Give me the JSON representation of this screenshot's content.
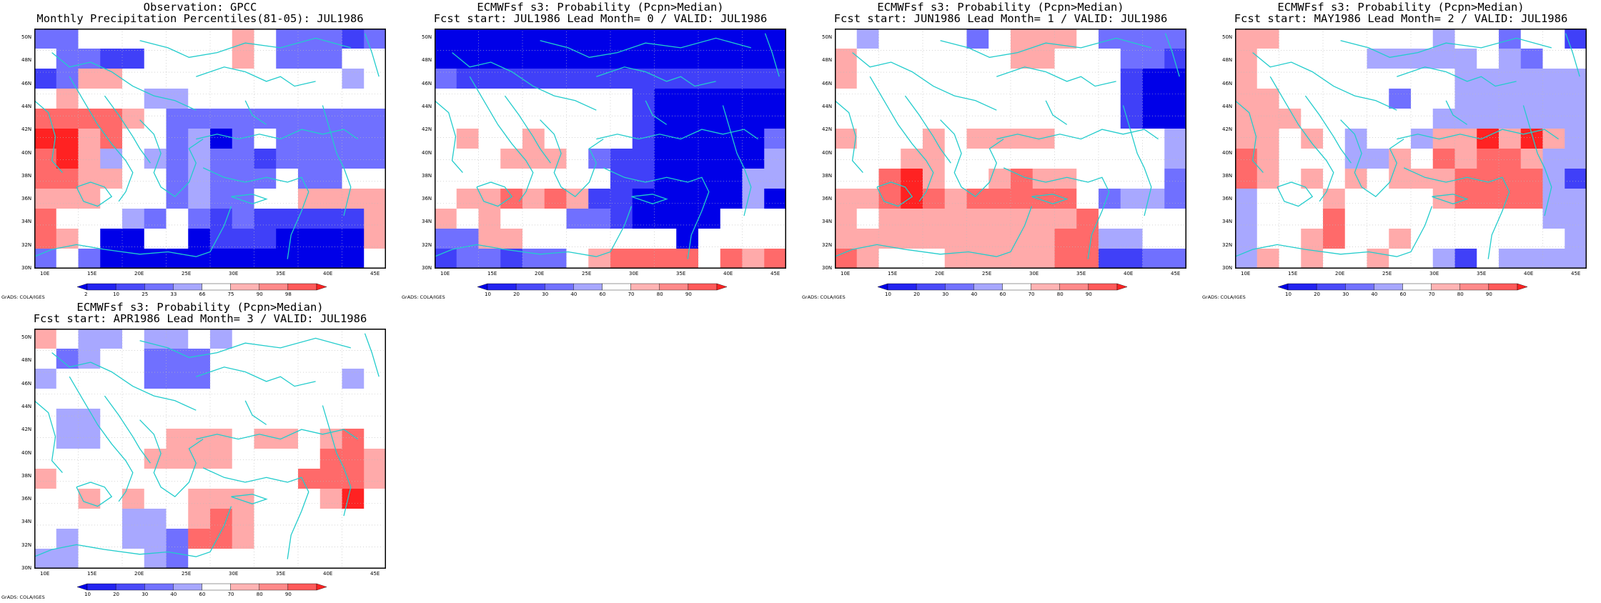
{
  "panels": [
    {
      "title_line1": "Observation: GPCC",
      "title_line2": "Monthly Precipitation Percentiles(81-05): JUL1986",
      "colorbar_labels": [
        "2",
        "10",
        "25",
        "33",
        "66",
        "75",
        "90",
        "98"
      ],
      "grid": [
        [
          "b1",
          "b1",
          "w",
          "w",
          "w",
          "w",
          "w",
          "w",
          "w",
          "r1",
          "w",
          "b1",
          "b1",
          "b1",
          "b2",
          "b1"
        ],
        [
          "w",
          "b1",
          "b1",
          "b2",
          "b2",
          "w",
          "w",
          "w",
          "w",
          "r1",
          "w",
          "b1",
          "b1",
          "b1",
          "w",
          "w"
        ],
        [
          "b2",
          "b1",
          "r1",
          "r1",
          "w",
          "w",
          "w",
          "w",
          "w",
          "w",
          "w",
          "w",
          "w",
          "w",
          "b0",
          "w"
        ],
        [
          "w",
          "r1",
          "w",
          "w",
          "w",
          "b0",
          "b0",
          "w",
          "w",
          "w",
          "w",
          "w",
          "w",
          "w",
          "w",
          "w"
        ],
        [
          "r2",
          "r2",
          "r2",
          "r2",
          "r1",
          "w",
          "b1",
          "b1",
          "b1",
          "b1",
          "b1",
          "b1",
          "b1",
          "b1",
          "b1",
          "b1"
        ],
        [
          "r3",
          "r3",
          "r1",
          "r2",
          "w",
          "w",
          "b1",
          "b0",
          "b3",
          "b1",
          "w",
          "b1",
          "b1",
          "b1",
          "b1",
          "b1"
        ],
        [
          "r2",
          "r3",
          "r1",
          "b0",
          "w",
          "b0",
          "b1",
          "b0",
          "b1",
          "b1",
          "b2",
          "b1",
          "b1",
          "b1",
          "b1",
          "b1"
        ],
        [
          "r2",
          "r2",
          "r1",
          "r1",
          "w",
          "w",
          "b1",
          "b0",
          "b1",
          "b1",
          "b1",
          "w",
          "b1",
          "b1",
          "w",
          "w"
        ],
        [
          "r1",
          "r1",
          "r1",
          "w",
          "w",
          "w",
          "b1",
          "b0",
          "b1",
          "b1",
          "w",
          "w",
          "r1",
          "r1",
          "r1",
          "r1"
        ],
        [
          "r2",
          "w",
          "w",
          "w",
          "b0",
          "b1",
          "w",
          "b1",
          "b2",
          "b1",
          "b2",
          "b2",
          "b2",
          "b2",
          "b2",
          "r1"
        ],
        [
          "r2",
          "r1",
          "w",
          "b3",
          "b3",
          "w",
          "w",
          "b3",
          "b2",
          "b2",
          "b2",
          "b3",
          "b3",
          "b3",
          "b3",
          "r1"
        ],
        [
          "b1",
          "w",
          "b1",
          "b3",
          "b3",
          "b3",
          "b3",
          "b3",
          "b3",
          "b3",
          "b3",
          "b3",
          "b3",
          "b3",
          "b3",
          "w"
        ]
      ]
    },
    {
      "title_line1": "ECMWFsf s3: Probability (Pcpn>Median)",
      "title_line2": "Fcst start: JUL1986  Lead Month= 0 / VALID: JUL1986",
      "colorbar_labels": [
        "10",
        "20",
        "30",
        "40",
        "60",
        "70",
        "80",
        "90"
      ],
      "grid": [
        [
          "b3",
          "b3",
          "b3",
          "b3",
          "b3",
          "b3",
          "b3",
          "b3",
          "b3",
          "b3",
          "b3",
          "b3",
          "b3",
          "b3",
          "b3",
          "b3"
        ],
        [
          "b3",
          "b3",
          "b3",
          "b3",
          "b3",
          "b3",
          "b3",
          "b3",
          "b3",
          "b3",
          "b3",
          "b3",
          "b3",
          "b3",
          "b3",
          "b3"
        ],
        [
          "b1",
          "b2",
          "b2",
          "b2",
          "b2",
          "b2",
          "b2",
          "b2",
          "b2",
          "b2",
          "b2",
          "b2",
          "b2",
          "b2",
          "b2",
          "b2"
        ],
        [
          "w",
          "w",
          "w",
          "w",
          "w",
          "w",
          "w",
          "w",
          "w",
          "b2",
          "b3",
          "b3",
          "b3",
          "b3",
          "b3",
          "b3"
        ],
        [
          "w",
          "w",
          "w",
          "w",
          "w",
          "w",
          "w",
          "w",
          "w",
          "b2",
          "b3",
          "b3",
          "b3",
          "b3",
          "b3",
          "b3"
        ],
        [
          "w",
          "r1",
          "w",
          "w",
          "r1",
          "w",
          "w",
          "w",
          "w",
          "b2",
          "b3",
          "b3",
          "b3",
          "b3",
          "b3",
          "b1"
        ],
        [
          "w",
          "w",
          "w",
          "r1",
          "r1",
          "r1",
          "w",
          "b1",
          "b2",
          "b2",
          "b3",
          "b3",
          "b3",
          "b3",
          "b3",
          "b0"
        ],
        [
          "w",
          "w",
          "w",
          "w",
          "w",
          "w",
          "w",
          "w",
          "b2",
          "b2",
          "b3",
          "b3",
          "b3",
          "b3",
          "b0",
          "b0"
        ],
        [
          "w",
          "r1",
          "r1",
          "r2",
          "r1",
          "r2",
          "r1",
          "b2",
          "b2",
          "b3",
          "b3",
          "b3",
          "b3",
          "b3",
          "b0",
          "b3"
        ],
        [
          "r1",
          "w",
          "r1",
          "w",
          "w",
          "w",
          "b1",
          "b1",
          "b2",
          "b3",
          "b3",
          "b3",
          "b3",
          "w",
          "w",
          "w"
        ],
        [
          "b1",
          "b1",
          "r1",
          "r1",
          "w",
          "w",
          "w",
          "w",
          "w",
          "w",
          "w",
          "b3",
          "w",
          "w",
          "w",
          "w"
        ],
        [
          "b2",
          "b1",
          "b1",
          "b2",
          "b1",
          "b1",
          "w",
          "r1",
          "r2",
          "r2",
          "r2",
          "r2",
          "w",
          "r2",
          "r1",
          "r2"
        ]
      ]
    },
    {
      "title_line1": "ECMWFsf s3: Probability (Pcpn>Median)",
      "title_line2": "Fcst start: JUN1986  Lead Month= 1 / VALID: JUL1986",
      "colorbar_labels": [
        "10",
        "20",
        "30",
        "40",
        "60",
        "70",
        "80",
        "90"
      ],
      "grid": [
        [
          "w",
          "b0",
          "w",
          "w",
          "w",
          "w",
          "b1",
          "w",
          "r1",
          "r1",
          "r1",
          "w",
          "b1",
          "b1",
          "b1",
          "b1"
        ],
        [
          "r1",
          "w",
          "w",
          "w",
          "w",
          "w",
          "w",
          "w",
          "r1",
          "r1",
          "w",
          "w",
          "w",
          "b1",
          "b1",
          "b2"
        ],
        [
          "r1",
          "w",
          "w",
          "w",
          "w",
          "w",
          "w",
          "w",
          "w",
          "w",
          "w",
          "w",
          "w",
          "b2",
          "b3",
          "b3"
        ],
        [
          "w",
          "w",
          "w",
          "w",
          "w",
          "w",
          "w",
          "w",
          "w",
          "w",
          "w",
          "w",
          "w",
          "b2",
          "b3",
          "b3"
        ],
        [
          "w",
          "w",
          "w",
          "w",
          "w",
          "w",
          "w",
          "w",
          "w",
          "w",
          "w",
          "w",
          "w",
          "b2",
          "b3",
          "b3"
        ],
        [
          "r1",
          "w",
          "w",
          "w",
          "r1",
          "w",
          "r1",
          "r1",
          "r1",
          "r1",
          "w",
          "w",
          "w",
          "w",
          "w",
          "b0"
        ],
        [
          "w",
          "w",
          "w",
          "r1",
          "r1",
          "w",
          "w",
          "w",
          "w",
          "w",
          "w",
          "w",
          "w",
          "w",
          "w",
          "b0"
        ],
        [
          "w",
          "w",
          "r2",
          "r3",
          "r1",
          "w",
          "w",
          "r1",
          "r2",
          "r1",
          "r1",
          "w",
          "w",
          "w",
          "w",
          "b1"
        ],
        [
          "r1",
          "r1",
          "r2",
          "r3",
          "r2",
          "r1",
          "r2",
          "r2",
          "r2",
          "r2",
          "r2",
          "w",
          "b1",
          "b0",
          "b0",
          "b1"
        ],
        [
          "r1",
          "w",
          "r1",
          "r1",
          "r1",
          "r1",
          "r1",
          "r1",
          "r1",
          "r1",
          "r1",
          "r2",
          "w",
          "w",
          "w",
          "w"
        ],
        [
          "r1",
          "r1",
          "r1",
          "r1",
          "r1",
          "r1",
          "r1",
          "r1",
          "r1",
          "r1",
          "r2",
          "r2",
          "b0",
          "b0",
          "w",
          "w"
        ],
        [
          "r2",
          "r1",
          "w",
          "w",
          "w",
          "r1",
          "r1",
          "r1",
          "r1",
          "r1",
          "r2",
          "r2",
          "b2",
          "b2",
          "b1",
          "b1"
        ]
      ]
    },
    {
      "title_line1": "ECMWFsf s3: Probability (Pcpn>Median)",
      "title_line2": "Fcst start: MAY1986  Lead Month= 2 / VALID: JUL1986",
      "colorbar_labels": [
        "10",
        "20",
        "30",
        "40",
        "60",
        "70",
        "80",
        "90"
      ],
      "grid": [
        [
          "r1",
          "r1",
          "w",
          "w",
          "w",
          "w",
          "w",
          "w",
          "w",
          "b0",
          "w",
          "w",
          "b1",
          "w",
          "w",
          "b2"
        ],
        [
          "r1",
          "w",
          "w",
          "w",
          "w",
          "w",
          "b0",
          "b0",
          "b0",
          "b0",
          "b0",
          "w",
          "b0",
          "b1",
          "w",
          "w"
        ],
        [
          "r1",
          "w",
          "w",
          "w",
          "w",
          "w",
          "w",
          "w",
          "w",
          "w",
          "b0",
          "b0",
          "b0",
          "b0",
          "b0",
          "b0"
        ],
        [
          "r1",
          "r1",
          "w",
          "w",
          "w",
          "w",
          "w",
          "b1",
          "w",
          "w",
          "b0",
          "b0",
          "b0",
          "b0",
          "b0",
          "b0"
        ],
        [
          "r1",
          "r1",
          "r1",
          "w",
          "w",
          "w",
          "w",
          "w",
          "w",
          "b0",
          "b0",
          "b0",
          "b0",
          "b0",
          "b0",
          "b0"
        ],
        [
          "r1",
          "r1",
          "w",
          "r1",
          "w",
          "b0",
          "w",
          "w",
          "b0",
          "r1",
          "r1",
          "r3",
          "r1",
          "r3",
          "r1",
          "b0"
        ],
        [
          "r2",
          "r1",
          "w",
          "w",
          "w",
          "b0",
          "b0",
          "r1",
          "w",
          "r2",
          "r1",
          "r2",
          "r2",
          "r1",
          "b0",
          "b0"
        ],
        [
          "r2",
          "r1",
          "w",
          "r1",
          "w",
          "r1",
          "w",
          "r1",
          "r1",
          "r1",
          "r2",
          "r2",
          "r2",
          "r2",
          "b0",
          "b2"
        ],
        [
          "b0",
          "w",
          "w",
          "w",
          "r1",
          "w",
          "w",
          "w",
          "w",
          "r1",
          "r2",
          "r2",
          "r2",
          "r2",
          "b0",
          "b0"
        ],
        [
          "b0",
          "w",
          "w",
          "w",
          "r2",
          "w",
          "w",
          "w",
          "w",
          "w",
          "w",
          "w",
          "w",
          "w",
          "b0",
          "b0"
        ],
        [
          "b0",
          "w",
          "w",
          "r1",
          "r2",
          "w",
          "w",
          "r1",
          "w",
          "w",
          "w",
          "w",
          "w",
          "w",
          "w",
          "b0"
        ],
        [
          "b0",
          "r1",
          "w",
          "r1",
          "w",
          "w",
          "r1",
          "w",
          "w",
          "b0",
          "b2",
          "w",
          "b0",
          "b0",
          "b0",
          "b0"
        ]
      ]
    },
    {
      "title_line1": "ECMWFsf s3: Probability (Pcpn>Median)",
      "title_line2": "Fcst start: APR1986  Lead Month= 3 / VALID: JUL1986",
      "colorbar_labels": [
        "10",
        "20",
        "30",
        "40",
        "60",
        "70",
        "80",
        "90"
      ],
      "grid": [
        [
          "r1",
          "w",
          "b0",
          "b0",
          "w",
          "b0",
          "b0",
          "w",
          "b0",
          "w",
          "w",
          "w",
          "w",
          "w",
          "w",
          "w"
        ],
        [
          "w",
          "b1",
          "b0",
          "w",
          "w",
          "b1",
          "b1",
          "b1",
          "w",
          "w",
          "w",
          "w",
          "w",
          "w",
          "w",
          "w"
        ],
        [
          "b0",
          "w",
          "w",
          "w",
          "w",
          "b1",
          "b1",
          "b1",
          "w",
          "w",
          "w",
          "w",
          "w",
          "w",
          "b0",
          "w"
        ],
        [
          "w",
          "w",
          "w",
          "w",
          "w",
          "w",
          "w",
          "w",
          "w",
          "w",
          "w",
          "w",
          "w",
          "w",
          "w",
          "w"
        ],
        [
          "w",
          "b0",
          "b0",
          "w",
          "w",
          "w",
          "w",
          "w",
          "w",
          "w",
          "w",
          "w",
          "w",
          "w",
          "w",
          "w"
        ],
        [
          "w",
          "b0",
          "b0",
          "w",
          "w",
          "w",
          "r1",
          "r1",
          "r1",
          "w",
          "r1",
          "r1",
          "w",
          "r1",
          "r2",
          "w"
        ],
        [
          "w",
          "w",
          "w",
          "w",
          "w",
          "r1",
          "r1",
          "r1",
          "r1",
          "w",
          "w",
          "w",
          "w",
          "r2",
          "r2",
          "r1"
        ],
        [
          "r1",
          "w",
          "w",
          "w",
          "w",
          "w",
          "w",
          "w",
          "w",
          "w",
          "w",
          "w",
          "r2",
          "r2",
          "r2",
          "r1"
        ],
        [
          "w",
          "w",
          "r1",
          "w",
          "r1",
          "w",
          "w",
          "r1",
          "r1",
          "r1",
          "w",
          "w",
          "w",
          "r1",
          "r3",
          "w"
        ],
        [
          "w",
          "w",
          "w",
          "w",
          "b0",
          "b0",
          "w",
          "r1",
          "r2",
          "r1",
          "w",
          "w",
          "w",
          "w",
          "w",
          "w"
        ],
        [
          "w",
          "b0",
          "w",
          "w",
          "b0",
          "b0",
          "b1",
          "r2",
          "r2",
          "r1",
          "w",
          "w",
          "w",
          "w",
          "w",
          "w"
        ],
        [
          "b0",
          "b0",
          "w",
          "w",
          "w",
          "b0",
          "b1",
          "w",
          "w",
          "w",
          "w",
          "w",
          "w",
          "w",
          "w",
          "w"
        ]
      ]
    }
  ],
  "lat_labels": [
    "50N",
    "48N",
    "46N",
    "44N",
    "42N",
    "40N",
    "38N",
    "36N",
    "34N",
    "32N",
    "30N"
  ],
  "lon_labels": [
    "10E",
    "15E",
    "20E",
    "25E",
    "30E",
    "35E",
    "40E",
    "45E"
  ],
  "credit": "GrADS: COLA/IGES",
  "palette": {
    "b3": "#0000e8",
    "b2": "#4040f8",
    "b1": "#7070ff",
    "b0": "#a8a8ff",
    "w": "#ffffff",
    "r1": "#ffaaaa",
    "r2": "#ff6a6a",
    "r3": "#ff2222",
    "coast": "#22cccc",
    "colorbar": [
      "#0000e8",
      "#2424f0",
      "#4a4af8",
      "#7272ff",
      "#a8a8ff",
      "#ffffff",
      "#ffb4b4",
      "#ff8a8a",
      "#ff5a5a",
      "#ff2222"
    ]
  }
}
